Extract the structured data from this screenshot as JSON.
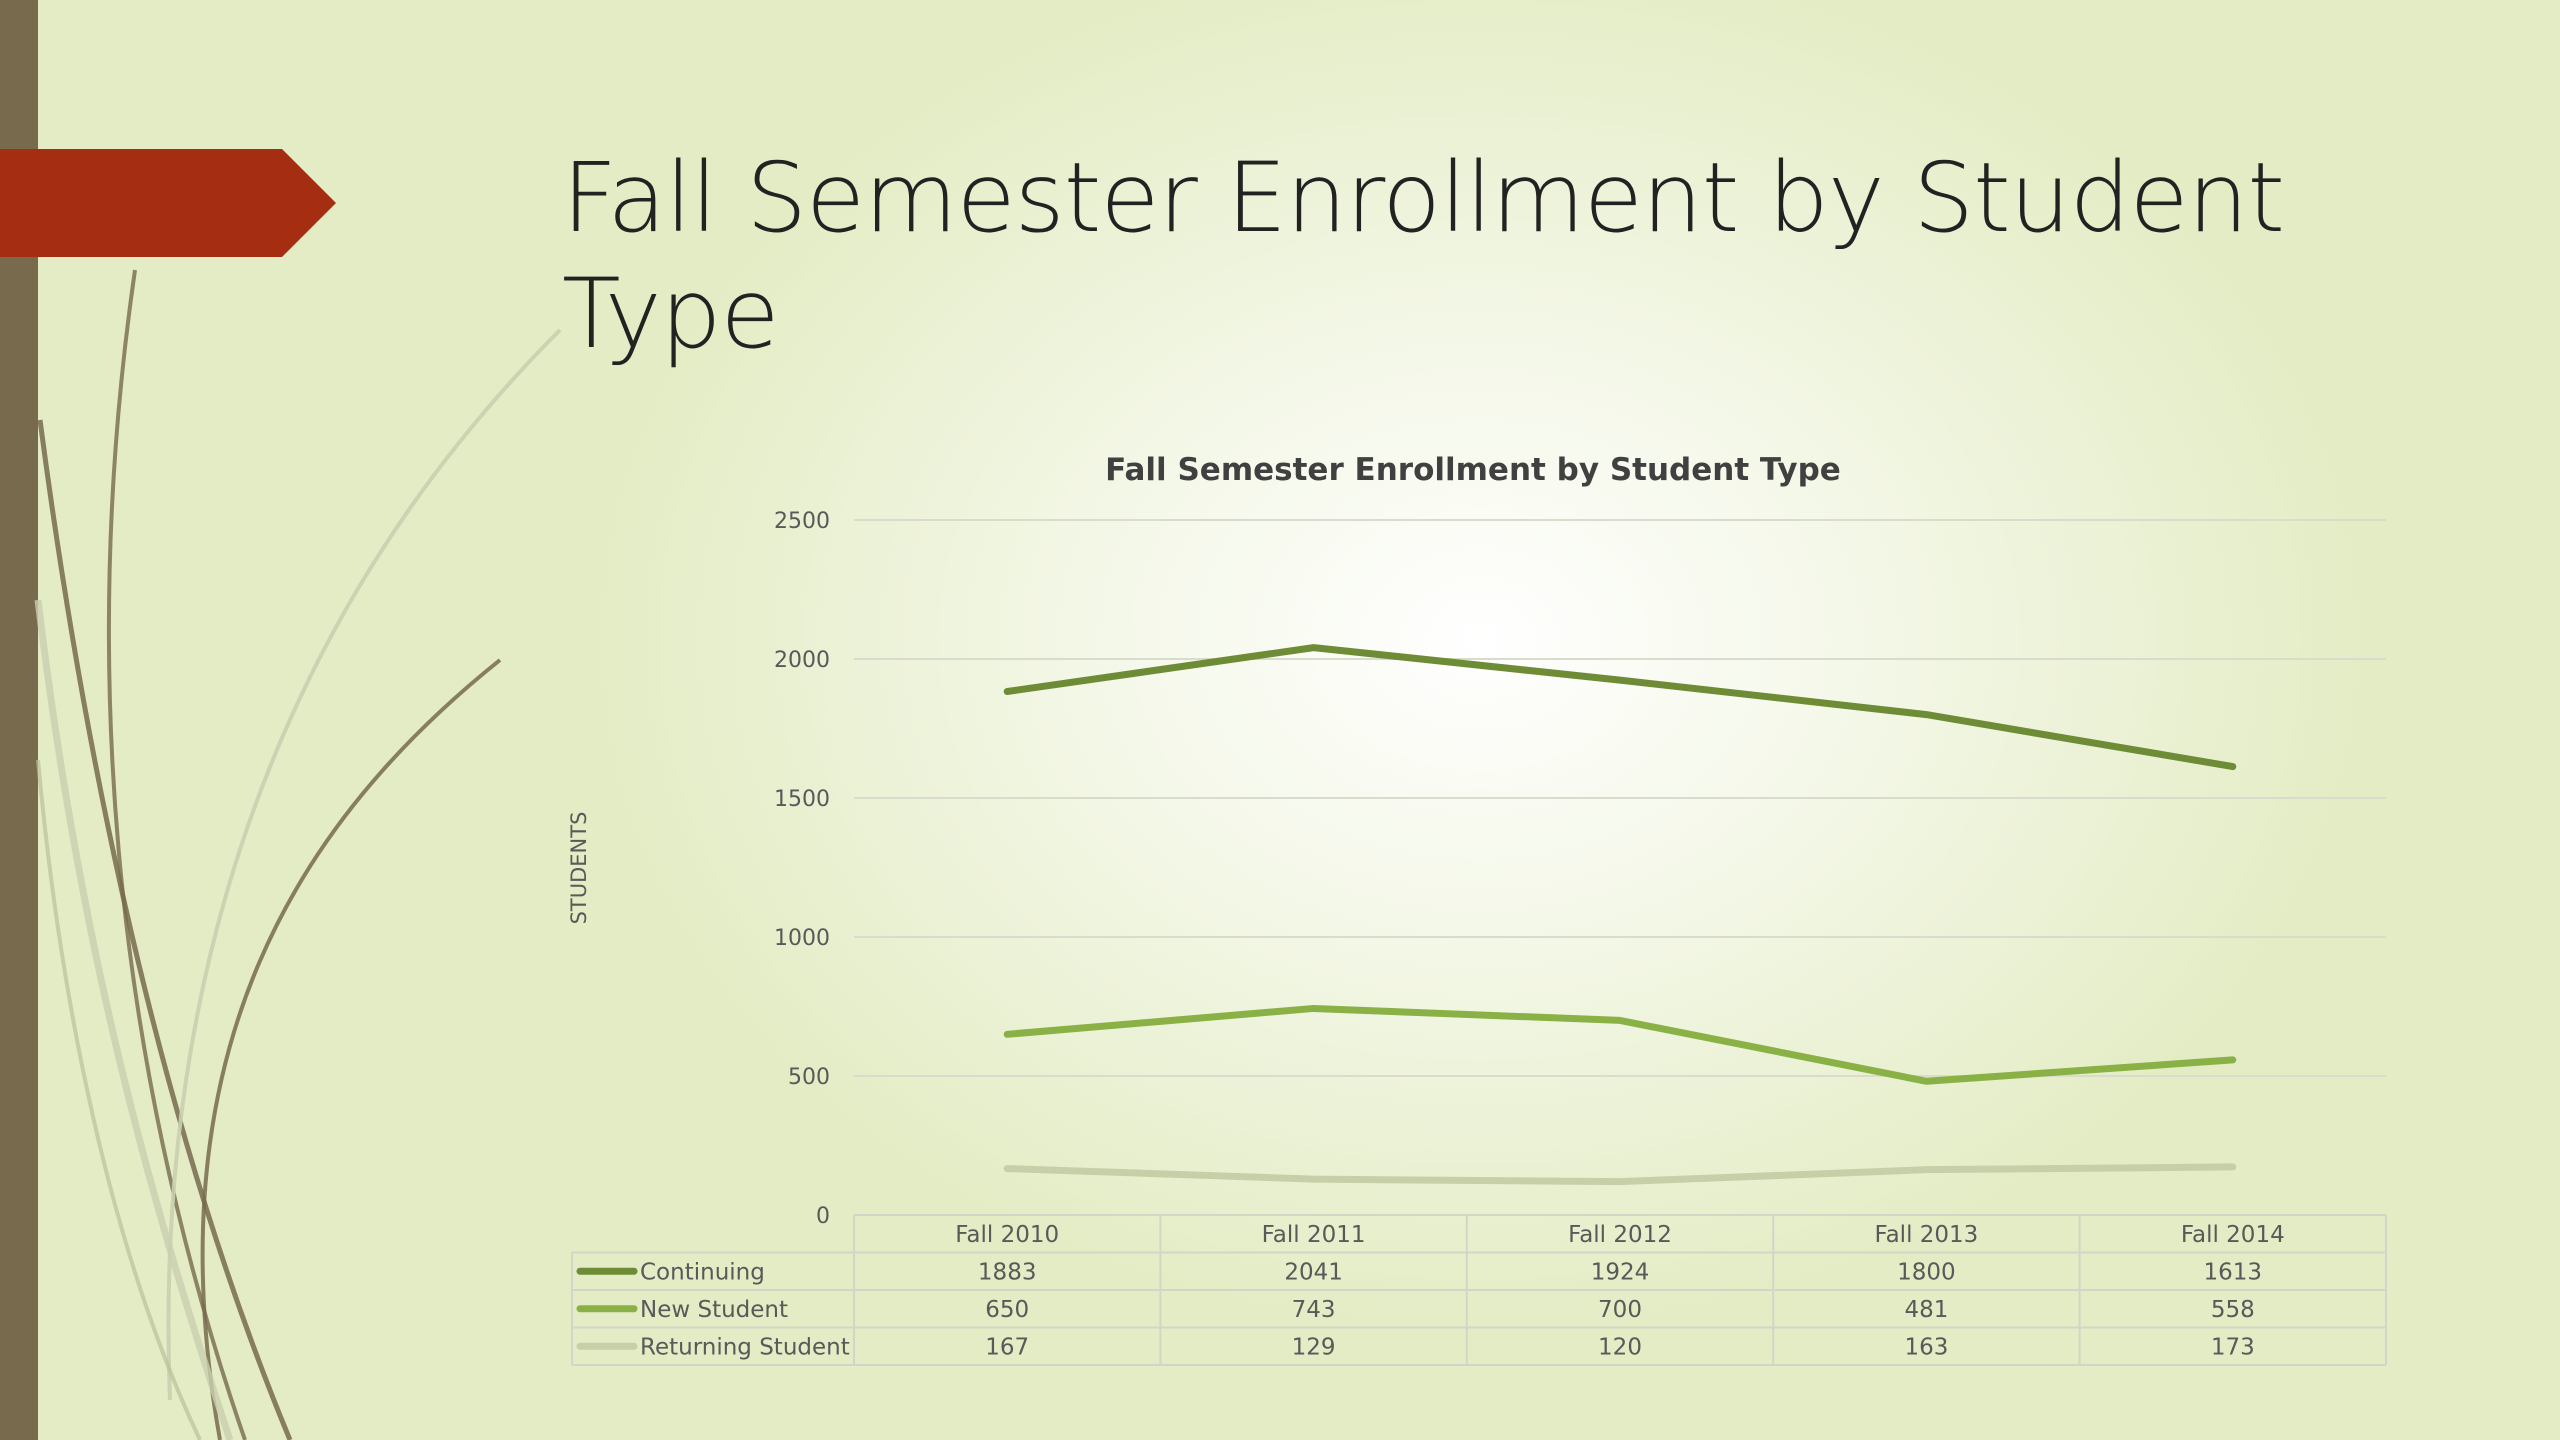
{
  "slide": {
    "title": "Fall Semester Enrollment by Student Type"
  },
  "colors": {
    "left_bar": "#776a4d",
    "arrow_tag": "#a52d12",
    "continuing": "#6e8b35",
    "new_student": "#8ab145",
    "returning_student": "#c6d0a8"
  },
  "chart_data": {
    "type": "line",
    "title": "Fall Semester Enrollment by Student Type",
    "xlabel": "",
    "ylabel": "STUDENTS",
    "ylim": [
      0,
      2500
    ],
    "yticks": [
      0,
      500,
      1000,
      1500,
      2000,
      2500
    ],
    "grid": true,
    "legend": "data-table-below",
    "categories": [
      "Fall 2010",
      "Fall 2011",
      "Fall 2012",
      "Fall 2013",
      "Fall 2014"
    ],
    "series": [
      {
        "name": "Continuing",
        "color": "#6e8b35",
        "values": [
          1883,
          2041,
          1924,
          1800,
          1613
        ]
      },
      {
        "name": "New Student",
        "color": "#8ab145",
        "values": [
          650,
          743,
          700,
          481,
          558
        ]
      },
      {
        "name": "Returning Student",
        "color": "#c6d0a8",
        "values": [
          167,
          129,
          120,
          163,
          173
        ]
      }
    ]
  }
}
